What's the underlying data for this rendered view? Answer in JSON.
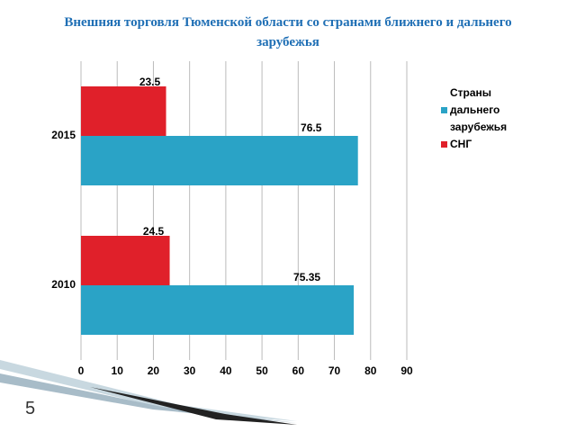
{
  "chart_data": {
    "type": "hbar",
    "title": "Внешняя торговля Тюменской области  со странами ближнего и дальнего зарубежья",
    "categories": [
      "2010",
      "2015"
    ],
    "series": [
      {
        "name": "Страны дальнего зарубежья",
        "color": "#2aa3c6",
        "values": [
          75.35,
          76.5
        ]
      },
      {
        "name": "СНГ",
        "color": "#e0202a",
        "values": [
          24.5,
          23.5
        ]
      }
    ],
    "xlim": [
      0,
      90
    ],
    "xticks": [
      0,
      10,
      20,
      30,
      40,
      50,
      60,
      70,
      80,
      90
    ],
    "grid": true,
    "legend": "right"
  },
  "slide_number": "5"
}
